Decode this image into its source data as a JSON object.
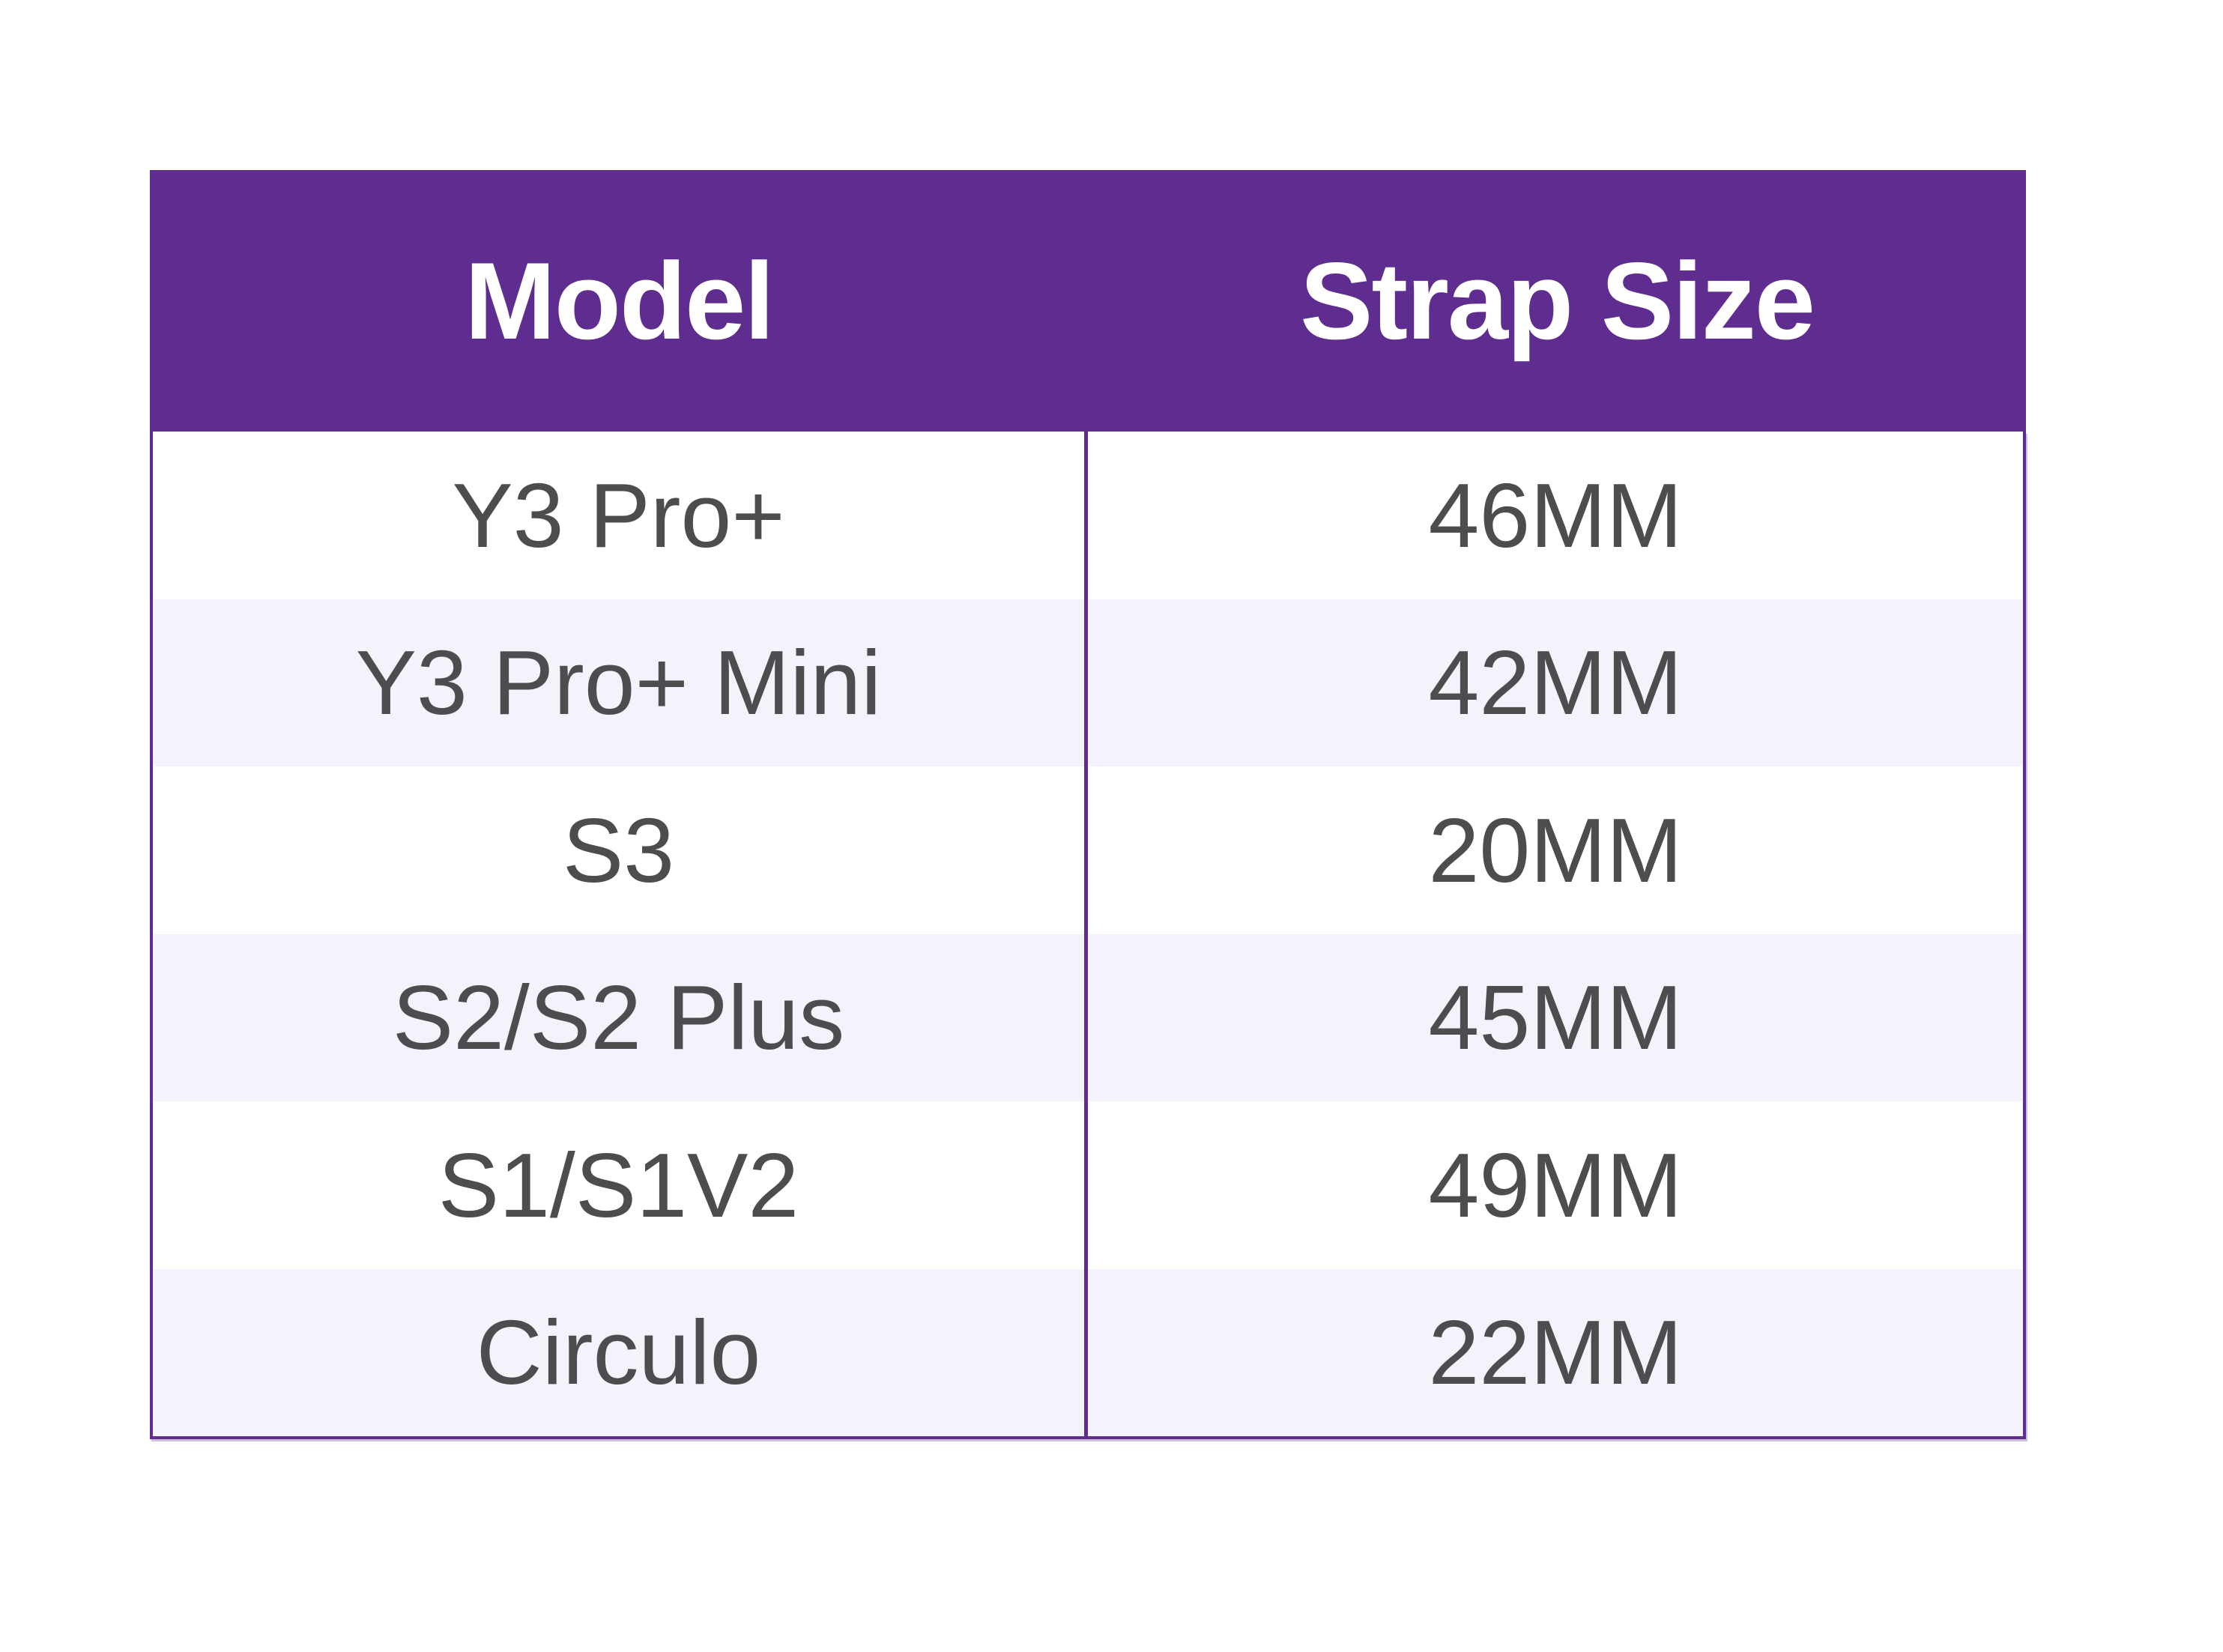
{
  "table": {
    "header": {
      "model_label": "Model",
      "strap_label": "Strap Size"
    },
    "rows": [
      {
        "model": "Y3 Pro+",
        "strap": "46MM"
      },
      {
        "model": "Y3 Pro+ Mini",
        "strap": "42MM"
      },
      {
        "model": "S3",
        "strap": "20MM"
      },
      {
        "model": "S2/S2 Plus",
        "strap": "45MM"
      },
      {
        "model": "S1/S1V2",
        "strap": "49MM"
      },
      {
        "model": "Circulo",
        "strap": "22MM"
      }
    ],
    "colors": {
      "header_bg": "#5f2c90",
      "header_text": "#ffffff",
      "row_bg": "#ffffff",
      "row_alt_bg": "#f4f2fa",
      "border": "#5f2c90",
      "cell_text": "#4d4d4f"
    }
  },
  "chart_data": {
    "type": "table",
    "title": "",
    "columns": [
      "Model",
      "Strap Size"
    ],
    "rows": [
      [
        "Y3 Pro+",
        "46MM"
      ],
      [
        "Y3 Pro+ Mini",
        "42MM"
      ],
      [
        "S3",
        "20MM"
      ],
      [
        "S2/S2 Plus",
        "45MM"
      ],
      [
        "S1/S1V2",
        "49MM"
      ],
      [
        "Circulo",
        "22MM"
      ]
    ]
  }
}
